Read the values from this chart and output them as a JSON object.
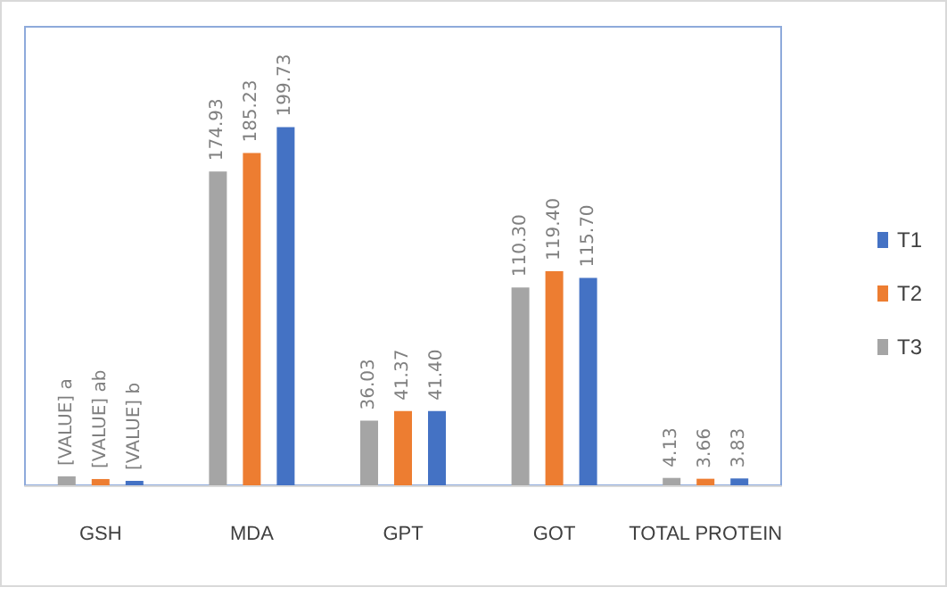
{
  "chart_data": {
    "type": "bar",
    "categories": [
      "GSH",
      "MDA",
      "GPT",
      "GOT",
      "TOTAL PROTEIN"
    ],
    "legend": "right",
    "grid": false,
    "series": [
      {
        "name": "T3",
        "color": "#a5a5a5",
        "values": [
          5,
          174.93,
          36.03,
          110.3,
          4.13
        ],
        "value_labels": [
          "[VALUE] a",
          "174.93",
          "36.03",
          "110.30",
          "4.13"
        ]
      },
      {
        "name": "T2",
        "color": "#ed7d31",
        "values": [
          3.5,
          185.23,
          41.37,
          119.4,
          3.66
        ],
        "value_labels": [
          "[VALUE] ab",
          "185.23",
          "41.37",
          "119.40",
          "3.66"
        ]
      },
      {
        "name": "T1",
        "color": "#4472c4",
        "values": [
          2.5,
          199.73,
          41.4,
          115.7,
          3.83
        ],
        "value_labels": [
          "[VALUE] b",
          "199.73",
          "41.40",
          "115.70",
          "3.83"
        ]
      }
    ]
  }
}
